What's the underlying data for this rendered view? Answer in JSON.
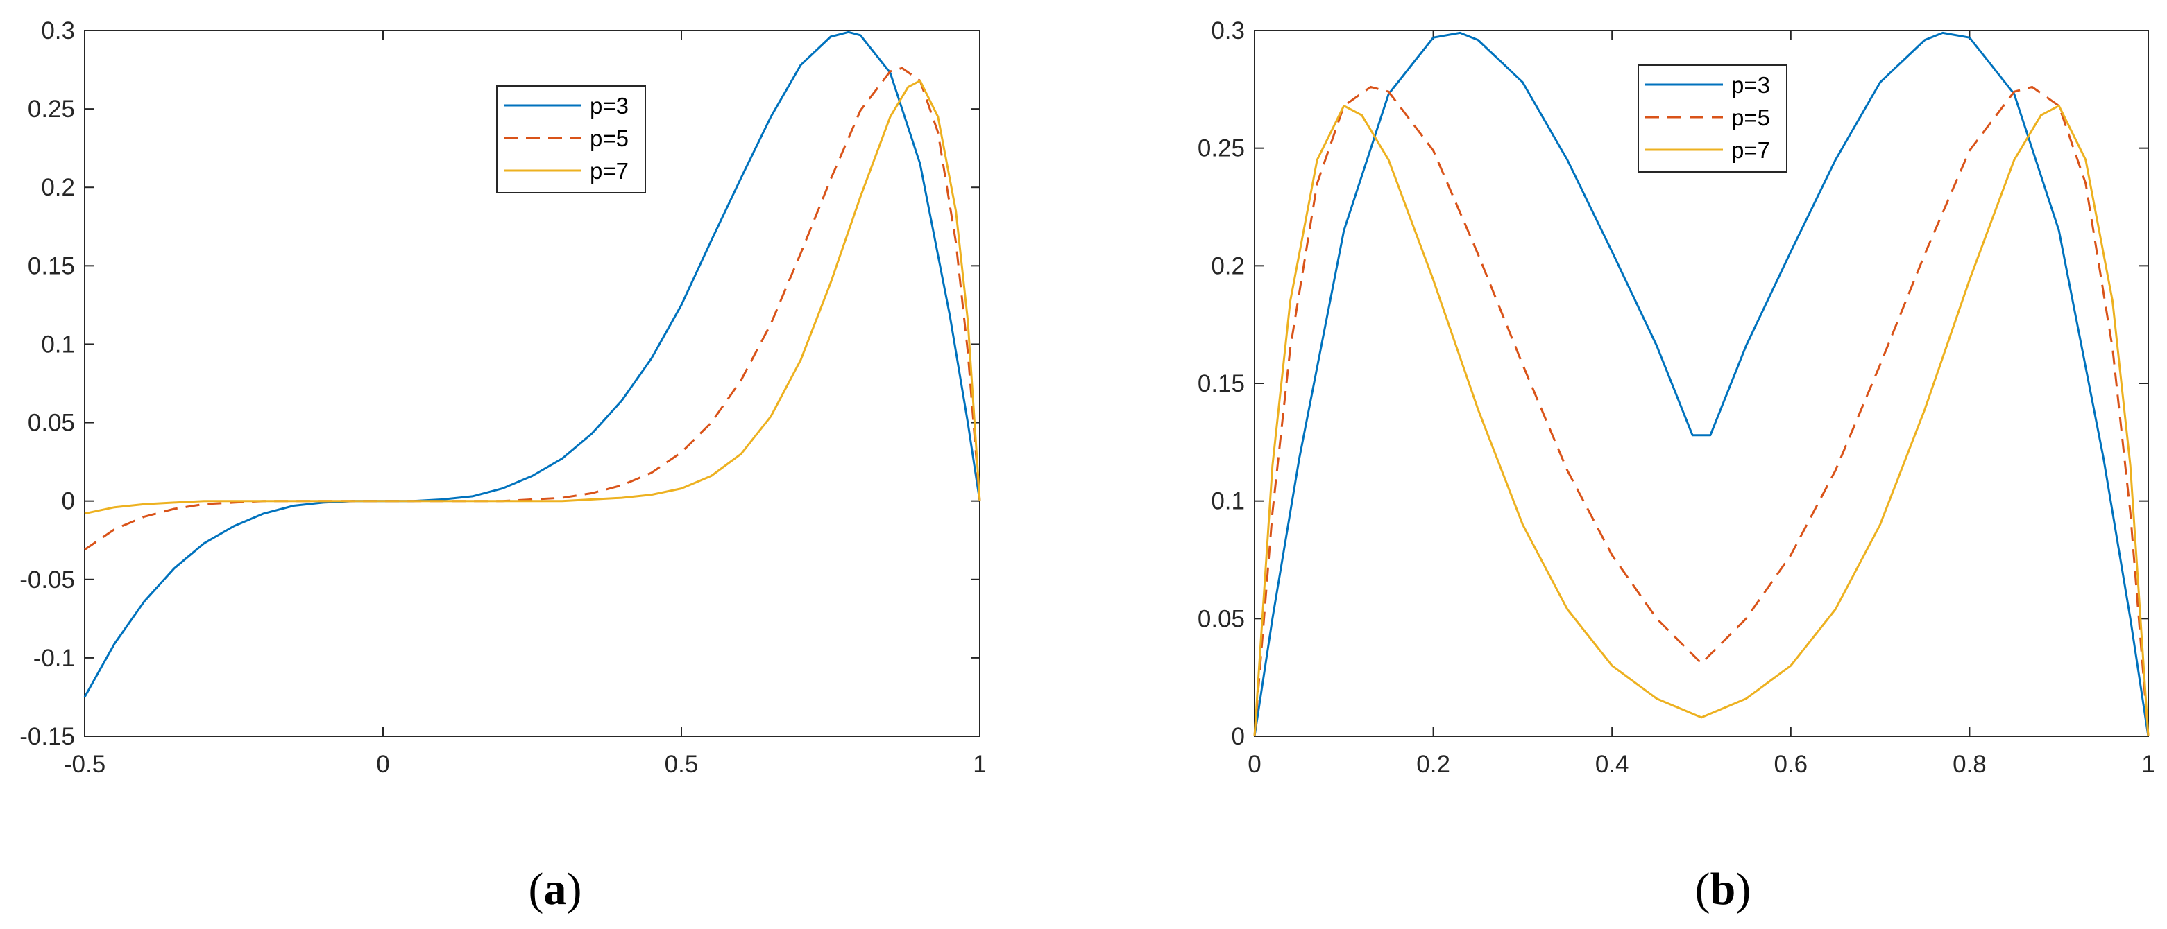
{
  "chart_data": [
    {
      "type": "line",
      "caption": "a",
      "title": "",
      "xlabel": "",
      "ylabel": "",
      "xlim": [
        -0.5,
        1
      ],
      "ylim": [
        -0.15,
        0.3
      ],
      "xticks": [
        -0.5,
        0,
        0.5,
        1
      ],
      "xtick_labels": [
        "-0.5",
        "0",
        "0.5",
        "1"
      ],
      "yticks": [
        -0.15,
        -0.1,
        -0.05,
        0,
        0.05,
        0.1,
        0.15,
        0.2,
        0.25,
        0.3
      ],
      "ytick_labels": [
        "-0.15",
        "-0.1",
        "-0.05",
        "0",
        "0.05",
        "0.1",
        "0.15",
        "0.2",
        "0.25",
        "0.3"
      ],
      "grid": false,
      "legend_position": "top-right",
      "series": [
        {
          "name": "p=3",
          "color": "#0072BD",
          "style": "solid",
          "x": [
            -0.5,
            -0.45,
            -0.4,
            -0.35,
            -0.3,
            -0.25,
            -0.2,
            -0.15,
            -0.1,
            -0.05,
            0,
            0.05,
            0.1,
            0.15,
            0.2,
            0.25,
            0.3,
            0.35,
            0.4,
            0.45,
            0.5,
            0.55,
            0.6,
            0.65,
            0.7,
            0.75,
            0.78,
            0.8,
            0.85,
            0.9,
            0.95,
            0.98,
            1
          ],
          "y": [
            -0.125,
            -0.091,
            -0.064,
            -0.043,
            -0.027,
            -0.016,
            -0.008,
            -0.003,
            -0.001,
            0,
            0,
            0,
            0.001,
            0.003,
            0.008,
            0.016,
            0.027,
            0.043,
            0.064,
            0.091,
            0.125,
            0.166,
            0.206,
            0.245,
            0.278,
            0.296,
            0.299,
            0.297,
            0.273,
            0.215,
            0.118,
            0.05,
            0
          ]
        },
        {
          "name": "p=5",
          "color": "#D95319",
          "style": "dashed",
          "x": [
            -0.5,
            -0.45,
            -0.4,
            -0.35,
            -0.3,
            -0.25,
            -0.2,
            -0.1,
            0,
            0.1,
            0.2,
            0.3,
            0.35,
            0.4,
            0.45,
            0.5,
            0.55,
            0.6,
            0.65,
            0.7,
            0.75,
            0.8,
            0.85,
            0.87,
            0.9,
            0.93,
            0.96,
            0.98,
            1
          ],
          "y": [
            -0.031,
            -0.018,
            -0.01,
            -0.005,
            -0.002,
            -0.001,
            0,
            0,
            0,
            0,
            0,
            0.002,
            0.005,
            0.01,
            0.018,
            0.031,
            0.05,
            0.077,
            0.113,
            0.158,
            0.205,
            0.249,
            0.274,
            0.276,
            0.268,
            0.235,
            0.165,
            0.095,
            0
          ]
        },
        {
          "name": "p=7",
          "color": "#EDB120",
          "style": "solid",
          "x": [
            -0.5,
            -0.45,
            -0.4,
            -0.35,
            -0.3,
            -0.2,
            -0.1,
            0,
            0.1,
            0.2,
            0.3,
            0.4,
            0.45,
            0.5,
            0.55,
            0.6,
            0.65,
            0.7,
            0.75,
            0.8,
            0.85,
            0.88,
            0.9,
            0.93,
            0.96,
            0.98,
            1
          ],
          "y": [
            -0.008,
            -0.004,
            -0.002,
            -0.001,
            0,
            0,
            0,
            0,
            0,
            0,
            0,
            0.002,
            0.004,
            0.008,
            0.016,
            0.03,
            0.054,
            0.09,
            0.139,
            0.194,
            0.245,
            0.264,
            0.268,
            0.245,
            0.185,
            0.115,
            0
          ]
        }
      ]
    },
    {
      "type": "line",
      "caption": "b",
      "title": "",
      "xlabel": "",
      "ylabel": "",
      "xlim": [
        0,
        1
      ],
      "ylim": [
        0,
        0.3
      ],
      "xticks": [
        0,
        0.2,
        0.4,
        0.6,
        0.8,
        1
      ],
      "xtick_labels": [
        "0",
        "0.2",
        "0.4",
        "0.6",
        "0.8",
        "1"
      ],
      "yticks": [
        0,
        0.05,
        0.1,
        0.15,
        0.2,
        0.25,
        0.3
      ],
      "ytick_labels": [
        "0",
        "0.05",
        "0.1",
        "0.15",
        "0.2",
        "0.25",
        "0.3"
      ],
      "grid": false,
      "legend_position": "top-center",
      "series": [
        {
          "name": "p=3",
          "color": "#0072BD",
          "style": "solid",
          "x": [
            0,
            0.02,
            0.05,
            0.1,
            0.15,
            0.2,
            0.23,
            0.25,
            0.3,
            0.35,
            0.4,
            0.45,
            0.49,
            0.5,
            0.51,
            0.55,
            0.6,
            0.65,
            0.7,
            0.75,
            0.77,
            0.8,
            0.85,
            0.9,
            0.95,
            0.98,
            1
          ],
          "y": [
            0,
            0.05,
            0.118,
            0.215,
            0.273,
            0.297,
            0.299,
            0.296,
            0.278,
            0.245,
            0.206,
            0.166,
            0.128,
            0.128,
            0.128,
            0.166,
            0.206,
            0.245,
            0.278,
            0.296,
            0.299,
            0.297,
            0.273,
            0.215,
            0.118,
            0.05,
            0
          ]
        },
        {
          "name": "p=5",
          "color": "#D95319",
          "style": "dashed",
          "x": [
            0,
            0.02,
            0.04,
            0.07,
            0.1,
            0.13,
            0.15,
            0.2,
            0.25,
            0.3,
            0.35,
            0.4,
            0.45,
            0.5,
            0.55,
            0.6,
            0.65,
            0.7,
            0.75,
            0.8,
            0.85,
            0.87,
            0.9,
            0.93,
            0.96,
            0.98,
            1
          ],
          "y": [
            0,
            0.095,
            0.165,
            0.235,
            0.268,
            0.276,
            0.274,
            0.249,
            0.205,
            0.158,
            0.113,
            0.077,
            0.05,
            0.031,
            0.05,
            0.077,
            0.113,
            0.158,
            0.205,
            0.249,
            0.274,
            0.276,
            0.268,
            0.235,
            0.165,
            0.095,
            0
          ]
        },
        {
          "name": "p=7",
          "color": "#EDB120",
          "style": "solid",
          "x": [
            0,
            0.02,
            0.04,
            0.07,
            0.1,
            0.12,
            0.15,
            0.2,
            0.25,
            0.3,
            0.35,
            0.4,
            0.45,
            0.5,
            0.55,
            0.6,
            0.65,
            0.7,
            0.75,
            0.8,
            0.85,
            0.88,
            0.9,
            0.93,
            0.96,
            0.98,
            1
          ],
          "y": [
            0,
            0.115,
            0.185,
            0.245,
            0.268,
            0.264,
            0.245,
            0.194,
            0.139,
            0.09,
            0.054,
            0.03,
            0.016,
            0.008,
            0.016,
            0.03,
            0.054,
            0.09,
            0.139,
            0.194,
            0.245,
            0.264,
            0.268,
            0.245,
            0.185,
            0.115,
            0
          ]
        }
      ]
    }
  ]
}
